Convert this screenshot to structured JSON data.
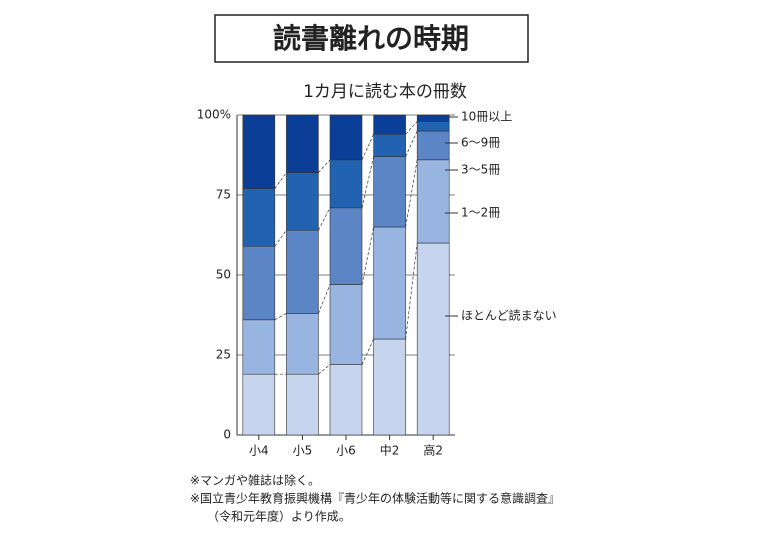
{
  "chart_data": {
    "type": "stacked-bar",
    "title": "読書離れの時期",
    "subtitle": "1カ月に読む本の冊数",
    "categories": [
      "小4",
      "小5",
      "小6",
      "中2",
      "高2"
    ],
    "series": [
      {
        "name": "ほとんど読まない",
        "color": "#c6d4ee",
        "values": [
          19,
          19,
          22,
          30,
          60
        ]
      },
      {
        "name": "1〜2冊",
        "color": "#98b4e0",
        "values": [
          17,
          19,
          25,
          35,
          26
        ]
      },
      {
        "name": "3〜5冊",
        "color": "#5b85c5",
        "values": [
          23,
          26,
          24,
          22,
          9
        ]
      },
      {
        "name": "6〜9冊",
        "color": "#2162b1",
        "values": [
          18,
          18,
          15,
          7,
          3
        ]
      },
      {
        "name": "10冊以上",
        "color": "#0b3f97",
        "values": [
          23,
          18,
          14,
          6,
          2
        ]
      }
    ],
    "ylim": [
      0,
      100
    ],
    "yticks": [
      0,
      25,
      50,
      75,
      {
        "value": 100,
        "label": "100%"
      }
    ],
    "grid": true,
    "notes": [
      "※マンガや雑誌は除く。",
      "※国立青少年教育振興機構『青少年の体験活動等に関する意識調査』",
      "（令和元年度）より作成。"
    ]
  }
}
